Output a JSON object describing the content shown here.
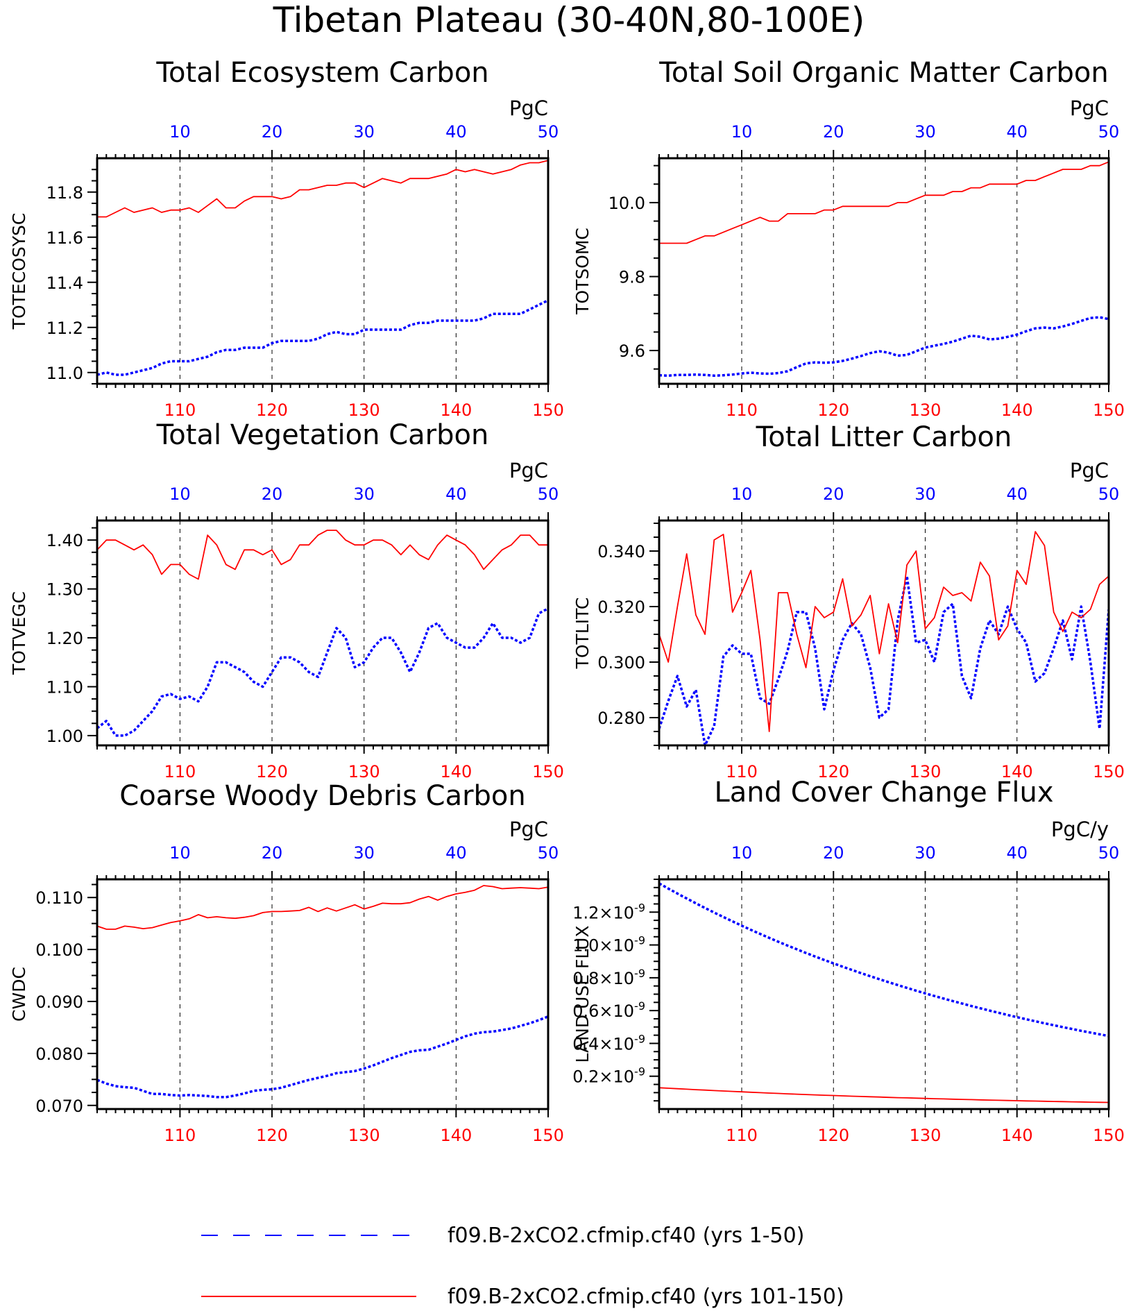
{
  "title": "Tibetan Plateau (30-40N,80-100E)",
  "colors": {
    "early": "#0000ff",
    "late": "#ff0000",
    "axis": "#000000"
  },
  "legend": {
    "entries": [
      {
        "label": "f09.B-2xCO2.cfmip.cf40 (yrs 1-50)",
        "color": "#0000ff",
        "style": "dashed"
      },
      {
        "label": "f09.B-2xCO2.cfmip.cf40 (yrs 101-150)",
        "color": "#ff0000",
        "style": "solid"
      }
    ]
  },
  "chart_data": [
    {
      "type": "line",
      "title": "Total Ecosystem Carbon",
      "ylabel": "TOTECOSYSC",
      "units": "PgC",
      "ylim": [
        10.95,
        11.95
      ],
      "yticks": [
        11.0,
        11.2,
        11.4,
        11.6,
        11.8
      ],
      "ytick_labels": [
        "11.0",
        "11.2",
        "11.4",
        "11.6",
        "11.8"
      ],
      "top_xlim": [
        1,
        50
      ],
      "top_xticks": [
        10,
        20,
        30,
        40,
        50
      ],
      "bottom_xlim": [
        101,
        150
      ],
      "bottom_xticks": [
        110,
        120,
        130,
        140,
        150
      ],
      "grid": "vertical-dashed",
      "series": [
        {
          "axis": "top",
          "color": "#0000ff",
          "style": "dotted",
          "values": [
            10.99,
            11.0,
            10.99,
            10.99,
            11.0,
            11.01,
            11.02,
            11.04,
            11.05,
            11.05,
            11.05,
            11.06,
            11.07,
            11.09,
            11.1,
            11.1,
            11.11,
            11.11,
            11.11,
            11.13,
            11.14,
            11.14,
            11.14,
            11.14,
            11.15,
            11.17,
            11.18,
            11.17,
            11.17,
            11.19,
            11.19,
            11.19,
            11.19,
            11.19,
            11.21,
            11.22,
            11.22,
            11.23,
            11.23,
            11.23,
            11.23,
            11.23,
            11.24,
            11.26,
            11.26,
            11.26,
            11.26,
            11.28,
            11.3,
            11.32
          ]
        },
        {
          "axis": "bottom",
          "color": "#ff0000",
          "style": "solid",
          "values": [
            11.69,
            11.69,
            11.71,
            11.73,
            11.71,
            11.72,
            11.73,
            11.71,
            11.72,
            11.72,
            11.73,
            11.71,
            11.74,
            11.77,
            11.73,
            11.73,
            11.76,
            11.78,
            11.78,
            11.78,
            11.77,
            11.78,
            11.81,
            11.81,
            11.82,
            11.83,
            11.83,
            11.84,
            11.84,
            11.82,
            11.84,
            11.86,
            11.85,
            11.84,
            11.86,
            11.86,
            11.86,
            11.87,
            11.88,
            11.9,
            11.89,
            11.9,
            11.89,
            11.88,
            11.89,
            11.9,
            11.92,
            11.93,
            11.93,
            11.94
          ]
        }
      ]
    },
    {
      "type": "line",
      "title": "Total Soil Organic Matter Carbon",
      "ylabel": "TOTSOMC",
      "units": "PgC",
      "ylim": [
        9.51,
        10.12
      ],
      "yticks": [
        9.6,
        9.8,
        10.0
      ],
      "ytick_labels": [
        "9.6",
        "9.8",
        "10.0"
      ],
      "top_xlim": [
        1,
        50
      ],
      "top_xticks": [
        10,
        20,
        30,
        40,
        50
      ],
      "bottom_xlim": [
        101,
        150
      ],
      "bottom_xticks": [
        110,
        120,
        130,
        140,
        150
      ],
      "grid": "vertical-dashed",
      "series": [
        {
          "axis": "top",
          "color": "#0000ff",
          "style": "dotted",
          "values": [
            9.533,
            9.532,
            9.534,
            9.534,
            9.535,
            9.534,
            9.532,
            9.533,
            9.535,
            9.538,
            9.54,
            9.538,
            9.537,
            9.539,
            9.544,
            9.555,
            9.565,
            9.568,
            9.567,
            9.568,
            9.572,
            9.578,
            9.585,
            9.593,
            9.598,
            9.594,
            9.586,
            9.588,
            9.598,
            9.608,
            9.613,
            9.618,
            9.624,
            9.632,
            9.64,
            9.637,
            9.63,
            9.632,
            9.637,
            9.643,
            9.652,
            9.66,
            9.662,
            9.66,
            9.665,
            9.672,
            9.68,
            9.688,
            9.69,
            9.685
          ]
        },
        {
          "axis": "bottom",
          "color": "#ff0000",
          "style": "solid",
          "values": [
            9.89,
            9.89,
            9.89,
            9.89,
            9.9,
            9.91,
            9.91,
            9.92,
            9.93,
            9.94,
            9.95,
            9.96,
            9.95,
            9.95,
            9.97,
            9.97,
            9.97,
            9.97,
            9.98,
            9.98,
            9.99,
            9.99,
            9.99,
            9.99,
            9.99,
            9.99,
            10.0,
            10.0,
            10.01,
            10.02,
            10.02,
            10.02,
            10.03,
            10.03,
            10.04,
            10.04,
            10.05,
            10.05,
            10.05,
            10.05,
            10.06,
            10.06,
            10.07,
            10.08,
            10.09,
            10.09,
            10.09,
            10.1,
            10.1,
            10.11
          ]
        }
      ]
    },
    {
      "type": "line",
      "title": "Total Vegetation Carbon",
      "ylabel": "TOTVEGC",
      "units": "PgC",
      "ylim": [
        0.98,
        1.44
      ],
      "yticks": [
        1.0,
        1.1,
        1.2,
        1.3,
        1.4
      ],
      "ytick_labels": [
        "1.00",
        "1.10",
        "1.20",
        "1.30",
        "1.40"
      ],
      "top_xlim": [
        1,
        50
      ],
      "top_xticks": [
        10,
        20,
        30,
        40,
        50
      ],
      "bottom_xlim": [
        101,
        150
      ],
      "bottom_xticks": [
        110,
        120,
        130,
        140,
        150
      ],
      "grid": "vertical-dashed",
      "series": [
        {
          "axis": "top",
          "color": "#0000ff",
          "style": "dotted",
          "values": [
            1.015,
            1.03,
            1.0,
            1.0,
            1.01,
            1.03,
            1.05,
            1.08,
            1.085,
            1.075,
            1.08,
            1.07,
            1.1,
            1.15,
            1.15,
            1.14,
            1.13,
            1.11,
            1.1,
            1.13,
            1.16,
            1.16,
            1.15,
            1.13,
            1.12,
            1.17,
            1.22,
            1.2,
            1.14,
            1.15,
            1.18,
            1.2,
            1.2,
            1.17,
            1.13,
            1.17,
            1.22,
            1.23,
            1.2,
            1.19,
            1.18,
            1.18,
            1.2,
            1.23,
            1.2,
            1.2,
            1.19,
            1.2,
            1.25,
            1.26
          ]
        },
        {
          "axis": "bottom",
          "color": "#ff0000",
          "style": "solid",
          "values": [
            1.38,
            1.4,
            1.4,
            1.39,
            1.38,
            1.39,
            1.37,
            1.33,
            1.35,
            1.35,
            1.33,
            1.32,
            1.41,
            1.39,
            1.35,
            1.34,
            1.38,
            1.38,
            1.37,
            1.38,
            1.35,
            1.36,
            1.39,
            1.39,
            1.41,
            1.42,
            1.42,
            1.4,
            1.39,
            1.39,
            1.4,
            1.4,
            1.39,
            1.37,
            1.39,
            1.37,
            1.36,
            1.39,
            1.41,
            1.4,
            1.39,
            1.37,
            1.34,
            1.36,
            1.38,
            1.39,
            1.41,
            1.41,
            1.39,
            1.39
          ]
        }
      ]
    },
    {
      "type": "line",
      "title": "Total Litter Carbon",
      "ylabel": "TOTLITC",
      "units": "PgC",
      "ylim": [
        0.27,
        0.351
      ],
      "yticks": [
        0.28,
        0.3,
        0.32,
        0.34
      ],
      "ytick_labels": [
        "0.280",
        "0.300",
        "0.320",
        "0.340"
      ],
      "top_xlim": [
        1,
        50
      ],
      "top_xticks": [
        10,
        20,
        30,
        40,
        50
      ],
      "bottom_xlim": [
        101,
        150
      ],
      "bottom_xticks": [
        110,
        120,
        130,
        140,
        150
      ],
      "grid": "vertical-dashed",
      "series": [
        {
          "axis": "top",
          "color": "#0000ff",
          "style": "dotted",
          "values": [
            0.276,
            0.286,
            0.295,
            0.284,
            0.29,
            0.27,
            0.277,
            0.302,
            0.306,
            0.303,
            0.303,
            0.287,
            0.285,
            0.294,
            0.304,
            0.318,
            0.318,
            0.305,
            0.283,
            0.297,
            0.308,
            0.314,
            0.31,
            0.298,
            0.28,
            0.283,
            0.315,
            0.331,
            0.307,
            0.308,
            0.3,
            0.318,
            0.321,
            0.295,
            0.287,
            0.305,
            0.315,
            0.31,
            0.32,
            0.312,
            0.307,
            0.293,
            0.296,
            0.305,
            0.315,
            0.301,
            0.32,
            0.3,
            0.276,
            0.319
          ]
        },
        {
          "axis": "bottom",
          "color": "#ff0000",
          "style": "solid",
          "values": [
            0.31,
            0.3,
            0.32,
            0.339,
            0.317,
            0.31,
            0.344,
            0.346,
            0.318,
            0.325,
            0.333,
            0.308,
            0.275,
            0.325,
            0.325,
            0.31,
            0.298,
            0.32,
            0.316,
            0.318,
            0.33,
            0.313,
            0.317,
            0.324,
            0.303,
            0.321,
            0.307,
            0.335,
            0.34,
            0.312,
            0.316,
            0.327,
            0.324,
            0.325,
            0.322,
            0.336,
            0.331,
            0.308,
            0.313,
            0.333,
            0.328,
            0.347,
            0.342,
            0.318,
            0.311,
            0.318,
            0.316,
            0.319,
            0.328,
            0.331
          ]
        }
      ]
    },
    {
      "type": "line",
      "title": "Coarse Woody Debris Carbon",
      "ylabel": "CWDC",
      "units": "PgC",
      "ylim": [
        0.0693,
        0.1135
      ],
      "yticks": [
        0.07,
        0.08,
        0.09,
        0.1,
        0.11
      ],
      "ytick_labels": [
        "0.070",
        "0.080",
        "0.090",
        "0.100",
        "0.110"
      ],
      "top_xlim": [
        1,
        50
      ],
      "top_xticks": [
        10,
        20,
        30,
        40,
        50
      ],
      "bottom_xlim": [
        101,
        150
      ],
      "bottom_xticks": [
        110,
        120,
        130,
        140,
        150
      ],
      "grid": "vertical-dashed",
      "series": [
        {
          "axis": "top",
          "color": "#0000ff",
          "style": "dotted",
          "values": [
            0.0749,
            0.0742,
            0.0737,
            0.0735,
            0.0734,
            0.0728,
            0.0722,
            0.0722,
            0.072,
            0.0719,
            0.072,
            0.0719,
            0.0718,
            0.0716,
            0.0716,
            0.0719,
            0.0723,
            0.0728,
            0.073,
            0.0731,
            0.0734,
            0.0739,
            0.0744,
            0.0749,
            0.0753,
            0.0757,
            0.0762,
            0.0764,
            0.0766,
            0.0771,
            0.0777,
            0.0784,
            0.0791,
            0.0797,
            0.0803,
            0.0806,
            0.0807,
            0.0813,
            0.0819,
            0.0826,
            0.0833,
            0.0838,
            0.0841,
            0.0842,
            0.0845,
            0.0848,
            0.0853,
            0.0858,
            0.0864,
            0.0871
          ]
        },
        {
          "axis": "bottom",
          "color": "#ff0000",
          "style": "solid",
          "values": [
            0.1045,
            0.1039,
            0.1039,
            0.1045,
            0.1043,
            0.104,
            0.1042,
            0.1047,
            0.1052,
            0.1055,
            0.1059,
            0.1067,
            0.1061,
            0.1063,
            0.1061,
            0.106,
            0.1062,
            0.1065,
            0.1071,
            0.1073,
            0.1073,
            0.1074,
            0.1075,
            0.1081,
            0.1073,
            0.108,
            0.1074,
            0.108,
            0.1086,
            0.1078,
            0.1083,
            0.1089,
            0.1088,
            0.1088,
            0.109,
            0.1097,
            0.1102,
            0.1095,
            0.1102,
            0.1107,
            0.111,
            0.1114,
            0.1123,
            0.1121,
            0.1117,
            0.1118,
            0.1119,
            0.1118,
            0.1117,
            0.112
          ]
        }
      ]
    },
    {
      "type": "line",
      "title": "Land Cover Change Flux",
      "ylabel": "LAND USE FLUX",
      "units": "PgC/y",
      "ylim": [
        0.0,
        1.4e-09
      ],
      "yticks": [
        2e-10,
        4e-10,
        6e-10,
        8e-10,
        1e-09,
        1.2e-09
      ],
      "ytick_labels": [
        [
          "0.2",
          "-9"
        ],
        [
          "0.4",
          "-9"
        ],
        [
          "0.6",
          "-9"
        ],
        [
          "0.8",
          "-9"
        ],
        [
          "1.0",
          "-9"
        ],
        [
          "1.2",
          "-9"
        ]
      ],
      "top_xlim": [
        1,
        50
      ],
      "top_xticks": [
        10,
        20,
        30,
        40,
        50
      ],
      "bottom_xlim": [
        101,
        150
      ],
      "bottom_xticks": [
        110,
        120,
        130,
        140,
        150
      ],
      "grid": "vertical-dashed",
      "decay": {
        "early": {
          "start": 1.375e-09,
          "end": 4.45e-10
        },
        "late": {
          "start": 1.3e-10,
          "end": 4e-11
        }
      }
    }
  ]
}
